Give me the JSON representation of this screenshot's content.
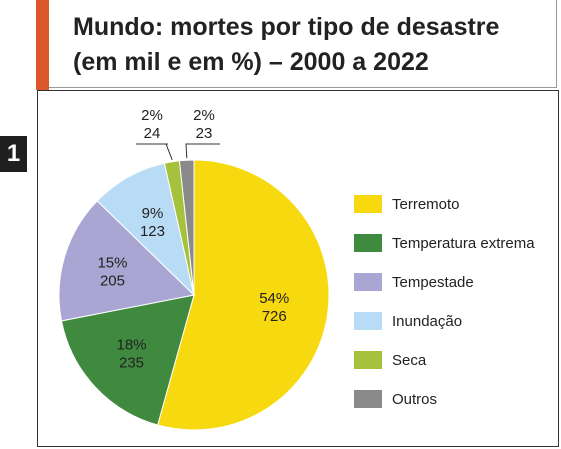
{
  "header": {
    "title_line1": "Mundo: mortes por tipo de desastre",
    "title_line2": "(em mil e em %) – 2000 a 2022",
    "badge": "1"
  },
  "colors": {
    "accent": "#d9572a",
    "terremoto": "#f7d90f",
    "temperatura": "#3f8a3e",
    "tempestade": "#a9a6d3",
    "inundacao": "#b9dcf6",
    "seca": "#a6c23d",
    "outros": "#8a8a8a"
  },
  "chart_data": {
    "type": "pie",
    "title": "Mundo: mortes por tipo de desastre (em mil e em %) – 2000 a 2022",
    "unit": "mil",
    "legend_position": "right",
    "slices": [
      {
        "label": "Terremoto",
        "value": 726,
        "percent": 54,
        "percent_label": "54%",
        "value_label": "726",
        "color": "#f7d90f"
      },
      {
        "label": "Temperatura extrema",
        "value": 235,
        "percent": 18,
        "percent_label": "18%",
        "value_label": "235",
        "color": "#3f8a3e"
      },
      {
        "label": "Tempestade",
        "value": 205,
        "percent": 15,
        "percent_label": "15%",
        "value_label": "205",
        "color": "#a9a6d3"
      },
      {
        "label": "Inundação",
        "value": 123,
        "percent": 9,
        "percent_label": "9%",
        "value_label": "123",
        "color": "#b9dcf6"
      },
      {
        "label": "Seca",
        "value": 24,
        "percent": 2,
        "percent_label": "2%",
        "value_label": "24",
        "color": "#a6c23d"
      },
      {
        "label": "Outros",
        "value": 23,
        "percent": 2,
        "percent_label": "2%",
        "value_label": "23",
        "color": "#8a8a8a"
      }
    ]
  }
}
